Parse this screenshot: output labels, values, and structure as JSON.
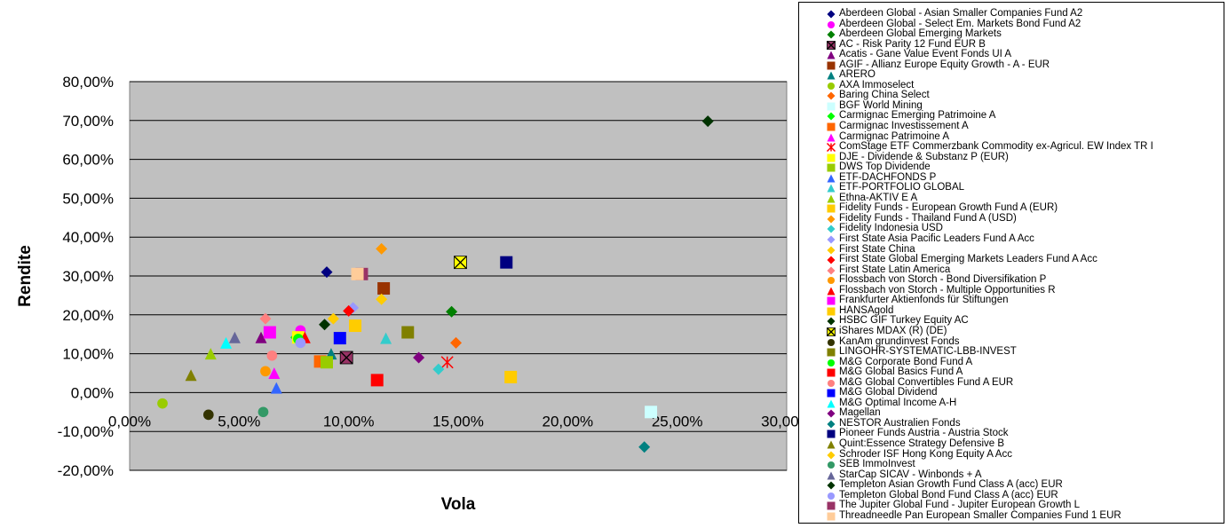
{
  "chart_data": {
    "type": "scatter",
    "xlabel": "Vola",
    "ylabel": "Rendite",
    "xlim": [
      0,
      0.3
    ],
    "ylim": [
      -0.2,
      0.8
    ],
    "x_ticks": [
      "0,00%",
      "5,00%",
      "10,00%",
      "15,00%",
      "20,00%",
      "25,00%",
      "30,00%"
    ],
    "y_ticks": [
      "80,00%",
      "70,00%",
      "60,00%",
      "50,00%",
      "40,00%",
      "30,00%",
      "20,00%",
      "10,00%",
      "0,00%",
      "-10,00%",
      "-20,00%"
    ],
    "x_tick_values": [
      0,
      0.05,
      0.1,
      0.15,
      0.2,
      0.25,
      0.3
    ],
    "y_tick_values": [
      0.8,
      0.7,
      0.6,
      0.5,
      0.4,
      0.3,
      0.2,
      0.1,
      0.0,
      -0.1,
      -0.2
    ],
    "grid": "horizontal",
    "legend_position": "right",
    "plot_background": "#c0c0c0",
    "series": [
      {
        "name": "Aberdeen Global - Asian Smaller Companies Fund A2",
        "marker": "diamond",
        "color": "#000080",
        "x": 0.09,
        "y": 0.31
      },
      {
        "name": "Aberdeen Global - Select Em. Markets Bond Fund A2",
        "marker": "circle",
        "color": "#ff00ff",
        "x": 0.078,
        "y": 0.16
      },
      {
        "name": "Aberdeen Global Emerging Markets",
        "marker": "diamond",
        "color": "#008000",
        "x": 0.147,
        "y": 0.208
      },
      {
        "name": "AC - Risk Parity 12 Fund EUR B",
        "marker": "square-x",
        "color": "#993366",
        "x": 0.099,
        "y": 0.09
      },
      {
        "name": "Acatis - Gane Value Event Fonds UI A",
        "marker": "triangle",
        "color": "#800080",
        "x": 0.06,
        "y": 0.142
      },
      {
        "name": "AGIF - Allianz Europe Equity Growth - A - EUR",
        "marker": "square",
        "color": "#993300",
        "x": 0.116,
        "y": 0.268
      },
      {
        "name": "ARERO",
        "marker": "triangle",
        "color": "#008080",
        "x": 0.092,
        "y": 0.1
      },
      {
        "name": "AXA Immoselect",
        "marker": "circle",
        "color": "#99cc00",
        "x": 0.015,
        "y": -0.028
      },
      {
        "name": "Baring China Select",
        "marker": "diamond",
        "color": "#ff6600",
        "x": 0.149,
        "y": 0.128
      },
      {
        "name": "BGF World Mining",
        "marker": "square",
        "color": "#ccffff",
        "x": 0.238,
        "y": -0.05
      },
      {
        "name": "Carmignac Emerging Patrimoine A",
        "marker": "diamond",
        "color": "#00ff00",
        "x": 0.076,
        "y": 0.142
      },
      {
        "name": "Carmignac Investissement A",
        "marker": "square",
        "color": "#ff6600",
        "x": 0.087,
        "y": 0.08
      },
      {
        "name": "Carmignac Patrimoine A",
        "marker": "triangle",
        "color": "#ff00ff",
        "x": 0.066,
        "y": 0.05
      },
      {
        "name": "ComStage ETF Commerzbank Commodity ex-Agricul. EW Index TR I",
        "marker": "star",
        "color": "#ff0000",
        "x": 0.145,
        "y": 0.078
      },
      {
        "name": "DJE - Dividende & Substanz P (EUR)",
        "marker": "square",
        "color": "#ffff00",
        "x": 0.077,
        "y": 0.142
      },
      {
        "name": "DWS Top Dividende",
        "marker": "square",
        "color": "#99cc00",
        "x": 0.09,
        "y": 0.078
      },
      {
        "name": "ETF-DACHFONDS P",
        "marker": "triangle",
        "color": "#3366ff",
        "x": 0.067,
        "y": 0.012
      },
      {
        "name": "ETF-PORTFOLIO GLOBAL",
        "marker": "triangle",
        "color": "#33cccc",
        "x": 0.117,
        "y": 0.14
      },
      {
        "name": "Ethna-AKTIV E A",
        "marker": "triangle",
        "color": "#99cc00",
        "x": 0.037,
        "y": 0.1
      },
      {
        "name": "Fidelity Funds - European Growth Fund A (EUR)",
        "marker": "square",
        "color": "#ffcc00",
        "x": 0.174,
        "y": 0.04
      },
      {
        "name": "Fidelity Funds - Thailand Fund A (USD)",
        "marker": "diamond",
        "color": "#ff9900",
        "x": 0.115,
        "y": 0.37
      },
      {
        "name": "Fidelity Indonesia USD",
        "marker": "diamond",
        "color": "#33cccc",
        "x": 0.141,
        "y": 0.06
      },
      {
        "name": "First State Asia Pacific Leaders Fund A Acc",
        "marker": "diamond",
        "color": "#9999ff",
        "x": 0.102,
        "y": 0.218
      },
      {
        "name": "First State China",
        "marker": "diamond",
        "color": "#ffcc00",
        "x": 0.093,
        "y": 0.19
      },
      {
        "name": "First State Global Emerging Markets Leaders Fund A Acc",
        "marker": "diamond",
        "color": "#ff0000",
        "x": 0.1,
        "y": 0.21
      },
      {
        "name": "First State Latin America",
        "marker": "diamond",
        "color": "#ff8080",
        "x": 0.062,
        "y": 0.19
      },
      {
        "name": "Flossbach von Storch - Bond Diversifikation P",
        "marker": "circle",
        "color": "#ff9900",
        "x": 0.062,
        "y": 0.055
      },
      {
        "name": "Flossbach von Storch - Multiple Opportunities R",
        "marker": "triangle",
        "color": "#ff0000",
        "x": 0.08,
        "y": 0.142
      },
      {
        "name": "Frankfurter Aktienfonds für Stiftungen",
        "marker": "square",
        "color": "#ff00ff",
        "x": 0.064,
        "y": 0.155
      },
      {
        "name": "HANSAgold",
        "marker": "square",
        "color": "#ffcc00",
        "x": 0.103,
        "y": 0.172
      },
      {
        "name": "HSBC GIF Turkey Equity AC",
        "marker": "diamond",
        "color": "#003300",
        "x": 0.089,
        "y": 0.175
      },
      {
        "name": "iShares MDAX (R) (DE)",
        "marker": "square-x",
        "color": "#ffff00",
        "x": 0.151,
        "y": 0.335
      },
      {
        "name": "KanAm grundinvest Fonds",
        "marker": "circle",
        "color": "#333300",
        "x": 0.036,
        "y": -0.057
      },
      {
        "name": "LINGOHR-SYSTEMATIC-LBB-INVEST",
        "marker": "square",
        "color": "#808000",
        "x": 0.127,
        "y": 0.155
      },
      {
        "name": "M&G Corporate Bond Fund A",
        "marker": "circle",
        "color": "#00ff00",
        "x": 0.077,
        "y": 0.138
      },
      {
        "name": "M&G Global Basics Fund A",
        "marker": "square",
        "color": "#ff0000",
        "x": 0.113,
        "y": 0.032
      },
      {
        "name": "M&G Global Convertibles Fund A EUR",
        "marker": "circle",
        "color": "#ff8080",
        "x": 0.065,
        "y": 0.095
      },
      {
        "name": "M&G Global Dividend",
        "marker": "square",
        "color": "#0000ff",
        "x": 0.096,
        "y": 0.14
      },
      {
        "name": "M&G Optimal Income A-H",
        "marker": "triangle",
        "color": "#00ffff",
        "x": 0.044,
        "y": 0.128
      },
      {
        "name": "Magellan",
        "marker": "diamond",
        "color": "#800080",
        "x": 0.132,
        "y": 0.09
      },
      {
        "name": "NESTOR Australien Fonds",
        "marker": "diamond",
        "color": "#008080",
        "x": 0.235,
        "y": -0.14
      },
      {
        "name": "Pioneer Funds Austria - Austria Stock",
        "marker": "square",
        "color": "#000080",
        "x": 0.172,
        "y": 0.335
      },
      {
        "name": "Quint:Essence Strategy Defensive B",
        "marker": "triangle",
        "color": "#808000",
        "x": 0.028,
        "y": 0.045
      },
      {
        "name": "Schroder ISF Hong Kong Equity A Acc",
        "marker": "diamond",
        "color": "#ffcc00",
        "x": 0.115,
        "y": 0.24
      },
      {
        "name": "SEB ImmoInvest",
        "marker": "circle",
        "color": "#339966",
        "x": 0.061,
        "y": -0.05
      },
      {
        "name": "StarCap SICAV - Winbonds + A",
        "marker": "triangle",
        "color": "#666699",
        "x": 0.048,
        "y": 0.142
      },
      {
        "name": "Templeton Asian Growth Fund Class A (acc) EUR",
        "marker": "diamond",
        "color": "#003300",
        "x": 0.264,
        "y": 0.698
      },
      {
        "name": "Templeton Global Bond Fund Class A (acc) EUR",
        "marker": "circle",
        "color": "#9999ff",
        "x": 0.078,
        "y": 0.128
      },
      {
        "name": "The Jupiter Global Fund - Jupiter European Growth L",
        "marker": "square",
        "color": "#993366",
        "x": 0.106,
        "y": 0.305
      },
      {
        "name": "Threadneedle Pan European Smaller Companies Fund 1 EUR",
        "marker": "square",
        "color": "#ffcc99",
        "x": 0.104,
        "y": 0.305
      }
    ]
  }
}
